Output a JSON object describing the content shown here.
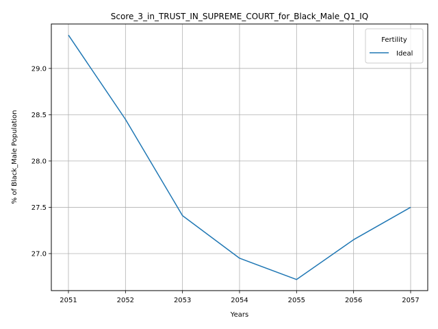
{
  "chart_data": {
    "type": "line",
    "title": "Score_3_in_TRUST_IN_SUPREME_COURT_for_Black_Male_Q1_IQ",
    "xlabel": "Years",
    "ylabel": "% of Black_Male Population",
    "x": [
      2051,
      2052,
      2053,
      2054,
      2055,
      2056,
      2057
    ],
    "x_tick_labels": [
      "2051",
      "2052",
      "2053",
      "2054",
      "2055",
      "2056",
      "2057"
    ],
    "y_ticks": [
      27.0,
      27.5,
      28.0,
      28.5,
      29.0
    ],
    "y_tick_labels": [
      "27.0",
      "27.5",
      "28.0",
      "28.5",
      "29.0"
    ],
    "ylim": [
      26.6,
      29.48
    ],
    "xlim": [
      2050.7,
      2057.3
    ],
    "grid": true,
    "legend": {
      "title": "Fertility",
      "placement": "top-right"
    },
    "series": [
      {
        "name": "Ideal",
        "color": "#1f77b4",
        "values": [
          29.36,
          28.45,
          27.41,
          26.95,
          26.72,
          27.15,
          27.5
        ]
      }
    ]
  }
}
